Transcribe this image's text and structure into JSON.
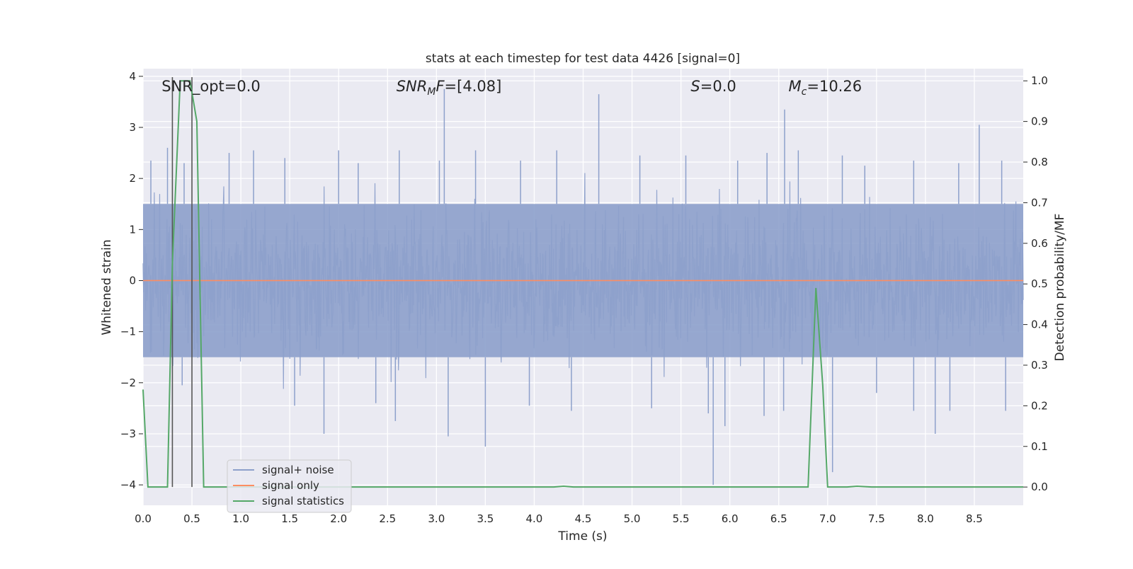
{
  "chart_data": {
    "type": "line",
    "title": "stats at each timestep for test data 4426 [signal=0]",
    "xlabel": "Time (s)",
    "ylabel": "Whitened strain",
    "y2label": "Detection probability/MF",
    "xlim": [
      0,
      9
    ],
    "ylim": [
      -4.4,
      4.15
    ],
    "y2lim": [
      -0.045,
      1.03
    ],
    "xticks": [
      "0.0",
      "0.5",
      "1.0",
      "1.5",
      "2.0",
      "2.5",
      "3.0",
      "3.5",
      "4.0",
      "4.5",
      "5.0",
      "5.5",
      "6.0",
      "6.5",
      "7.0",
      "7.5",
      "8.0",
      "8.5"
    ],
    "yticks": [
      "4",
      "3",
      "2",
      "1",
      "0",
      "−1",
      "−2",
      "−3",
      "−4"
    ],
    "y2ticks": [
      "1.0",
      "0.9",
      "0.8",
      "0.7",
      "0.6",
      "0.5",
      "0.4",
      "0.3",
      "0.2",
      "0.1",
      "0.0"
    ],
    "grid": true,
    "legend_position": "lower-left",
    "annotations": [
      {
        "id": "snr_opt",
        "text": "SNR_opt=0.0",
        "x": 0.19,
        "y": 3.82
      },
      {
        "id": "snr_mf",
        "base": "SNR",
        "sub": "M",
        "tail": "F=[4.08]",
        "x": 2.59,
        "y": 3.82
      },
      {
        "id": "s_val",
        "italic": "S",
        "tail": "=0.0",
        "x": 5.6,
        "y": 3.82
      },
      {
        "id": "mc_val",
        "base": "M",
        "sub": "c",
        "tail": "=10.26",
        "x": 6.6,
        "y": 3.82
      }
    ],
    "vlines": [
      0.3,
      0.5
    ],
    "series": [
      {
        "name": "signal+ noise",
        "color": "#8da0cb",
        "band": {
          "lower": -1.5,
          "upper": 1.5
        },
        "spikes": [
          [
            0.08,
            2.35
          ],
          [
            0.25,
            2.6
          ],
          [
            0.42,
            2.3
          ],
          [
            0.88,
            2.5
          ],
          [
            1.13,
            2.55
          ],
          [
            1.45,
            2.4
          ],
          [
            2.0,
            2.55
          ],
          [
            2.2,
            2.3
          ],
          [
            2.62,
            2.55
          ],
          [
            3.03,
            2.35
          ],
          [
            3.08,
            3.75
          ],
          [
            3.4,
            2.55
          ],
          [
            3.86,
            2.35
          ],
          [
            4.23,
            2.55
          ],
          [
            4.66,
            3.65
          ],
          [
            5.08,
            2.45
          ],
          [
            5.55,
            2.45
          ],
          [
            6.08,
            2.35
          ],
          [
            6.38,
            2.5
          ],
          [
            6.56,
            3.35
          ],
          [
            6.7,
            2.55
          ],
          [
            7.15,
            2.45
          ],
          [
            7.38,
            2.25
          ],
          [
            7.88,
            2.35
          ],
          [
            8.34,
            2.3
          ],
          [
            8.55,
            3.05
          ],
          [
            8.78,
            2.35
          ],
          [
            0.4,
            -2.05
          ],
          [
            1.55,
            -2.45
          ],
          [
            1.85,
            -3.0
          ],
          [
            2.38,
            -2.4
          ],
          [
            2.58,
            -2.75
          ],
          [
            3.12,
            -3.05
          ],
          [
            3.5,
            -3.25
          ],
          [
            3.95,
            -2.45
          ],
          [
            4.38,
            -2.55
          ],
          [
            5.2,
            -2.5
          ],
          [
            5.78,
            -2.6
          ],
          [
            5.83,
            -4.0
          ],
          [
            5.95,
            -2.85
          ],
          [
            6.35,
            -2.65
          ],
          [
            6.55,
            -2.55
          ],
          [
            7.05,
            -3.75
          ],
          [
            7.5,
            -2.2
          ],
          [
            7.88,
            -2.55
          ],
          [
            8.1,
            -3.0
          ],
          [
            8.25,
            -2.55
          ],
          [
            8.82,
            -2.55
          ]
        ]
      },
      {
        "name": "signal only",
        "color": "#fc8d62",
        "values_const": 0.0
      },
      {
        "name": "signal statistics",
        "color": "#55a868",
        "axis": "right",
        "x": [
          0.0,
          0.05,
          0.1,
          0.2,
          0.25,
          0.3,
          0.38,
          0.42,
          0.48,
          0.55,
          0.62,
          0.7,
          1.0,
          2.0,
          3.0,
          4.0,
          4.2,
          4.3,
          4.4,
          5.0,
          6.0,
          6.8,
          6.88,
          6.95,
          7.0,
          7.2,
          7.3,
          7.45,
          8.0,
          9.0
        ],
        "y": [
          0.24,
          0.0,
          0.0,
          0.0,
          0.0,
          0.55,
          1.0,
          1.0,
          1.0,
          0.9,
          0.0,
          0.0,
          0.0,
          0.0,
          0.0,
          0.0,
          0.0,
          0.002,
          0.0,
          0.0,
          0.0,
          0.0,
          0.49,
          0.25,
          0.0,
          0.0,
          0.002,
          0.0,
          0.0,
          0.0
        ]
      }
    ]
  }
}
